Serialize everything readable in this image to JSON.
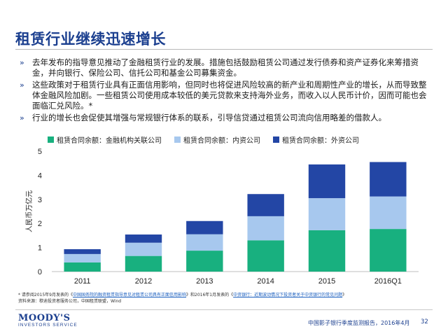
{
  "slide": {
    "title": "租赁行业继续迅速增长",
    "bullet_mark": "»",
    "bullets": [
      "去年发布的指导意见推动了金融租赁行业的发展。措施包括鼓励租赁公司通过发行债券和资产证券化来筹措资金，并向银行、保险公司、信托公司和基金公司募集资金。",
      "这些政策对于租赁行业具有正面信用影响，但同时也将促进风险较高的新产业和周期性产业的增长，从而导致整体金融风险加剧。一些租赁公司使用成本较低的美元贷款来支持海外业务，而收入以人民币计价，因而可能也会面临汇兑风险。*",
      "行业的增长也会促使其增强与常规银行体系的联系，引导信贷通过租赁公司流向信用略差的借款人。"
    ]
  },
  "colors": {
    "series_1": "#18b07f",
    "series_2": "#a7c8ee",
    "series_3": "#2346a5",
    "brand": "#1b3f8f"
  },
  "chart_data": {
    "type": "bar",
    "stacked": true,
    "title": "",
    "xlabel": "",
    "ylabel": "人民币万亿元",
    "ylim": [
      0,
      5
    ],
    "yticks": [
      0,
      1,
      2,
      3,
      4,
      5
    ],
    "categories": [
      "2011",
      "2012",
      "2013",
      "2014",
      "2015",
      "2016Q1"
    ],
    "series": [
      {
        "name": "租赁合同余额：金融机构关联公司",
        "values": [
          0.38,
          0.65,
          0.87,
          1.3,
          1.72,
          1.77
        ]
      },
      {
        "name": "租赁合同余额：内资公司",
        "values": [
          0.35,
          0.55,
          0.68,
          1.0,
          1.33,
          1.35
        ]
      },
      {
        "name": "租赁合同余额：外资公司",
        "values": [
          0.2,
          0.34,
          0.55,
          0.92,
          1.4,
          1.43
        ]
      }
    ]
  },
  "footnote": {
    "line1_part1": "* 请参阅2015年9月发表的《",
    "line1_link1": "中国国务院的融资租赁指导意见对租赁公司具有正面信用影响",
    "line1_part2": "》和2016年1月发表的《",
    "line1_link2": "中资银行：近期波动情况下投资者关于中资银行的常见问题",
    "line1_part3": "》",
    "line2": "资料来源：穆迪投资者服务公司，中国租赁联盟，Wind"
  },
  "footer": {
    "logo_main": "MOODY'S",
    "logo_sub": "INVESTORS SERVICE",
    "report": "中国影子银行季度监测报告，2016年4月",
    "page": "32"
  }
}
